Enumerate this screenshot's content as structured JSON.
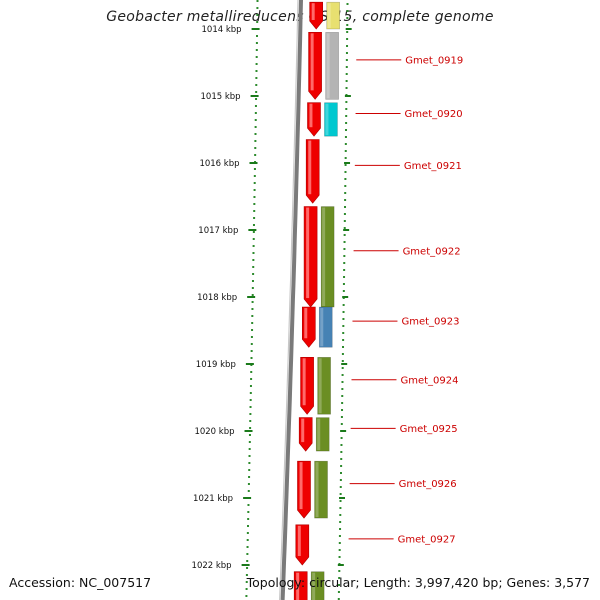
{
  "title": "Geobacter metallireducens GS-15, complete genome",
  "accession": "Accession: NC_007517",
  "summary": "Topology: circular; Length: 3,997,420 bp; Genes: 3,577",
  "ticks": [
    {
      "kbp": 1014,
      "label": "1014 kbp"
    },
    {
      "kbp": 1015,
      "label": "1015 kbp"
    },
    {
      "kbp": 1016,
      "label": "1016 kbp"
    },
    {
      "kbp": 1017,
      "label": "1017 kbp"
    },
    {
      "kbp": 1018,
      "label": "1018 kbp"
    },
    {
      "kbp": 1019,
      "label": "1019 kbp"
    },
    {
      "kbp": 1020,
      "label": "1020 kbp"
    },
    {
      "kbp": 1021,
      "label": "1021 kbp"
    },
    {
      "kbp": 1022,
      "label": "1022 kbp"
    }
  ],
  "genes": [
    {
      "name": "Gmet_0919",
      "start": 1014.05,
      "end": 1015.05,
      "color": "#b4b4b4"
    },
    {
      "name": "Gmet_0920",
      "start": 1015.1,
      "end": 1015.6,
      "color": "#00c8d0"
    },
    {
      "name": "Gmet_0921",
      "start": 1015.65,
      "end": 1016.6,
      "color": "#ffffff"
    },
    {
      "name": "Gmet_0922",
      "start": 1016.65,
      "end": 1018.15,
      "color": "#6b8e23"
    },
    {
      "name": "Gmet_0923",
      "start": 1018.15,
      "end": 1018.75,
      "color": "#4682b4"
    },
    {
      "name": "Gmet_0924",
      "start": 1018.9,
      "end": 1019.75,
      "color": "#6b8e23"
    },
    {
      "name": "Gmet_0925",
      "start": 1019.8,
      "end": 1020.3,
      "color": "#6b8e23"
    },
    {
      "name": "Gmet_0926",
      "start": 1020.45,
      "end": 1021.3,
      "color": "#6b8e23"
    },
    {
      "name": "Gmet_0927",
      "start": 1021.4,
      "end": 1022.0,
      "color": "#ffffff"
    },
    {
      "name": "",
      "start": 1022.1,
      "end": 1022.8,
      "color": "#6b8e23"
    },
    {
      "name": "",
      "start": 1013.6,
      "end": 1014.0,
      "color": "#e8e070"
    }
  ]
}
